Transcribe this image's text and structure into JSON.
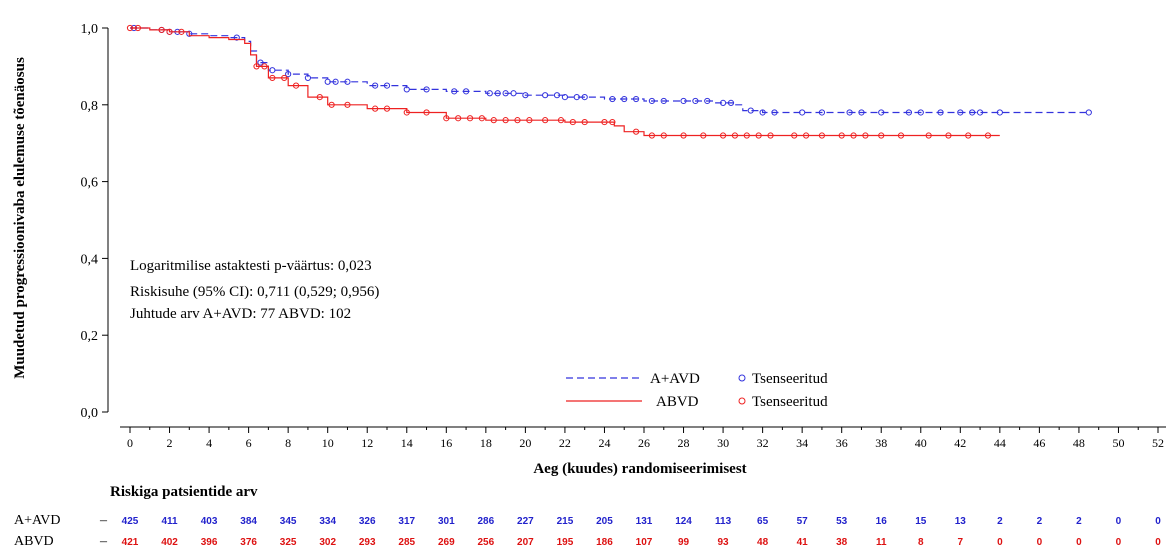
{
  "chart_data": {
    "type": "line",
    "title": "",
    "xlabel": "Aeg (kuudes) randomiseerimisest",
    "ylabel": "Muudetud progressioonivaba elulemuse tõenäosus",
    "xlim": [
      0,
      52
    ],
    "ylim": [
      0,
      1
    ],
    "x_ticks": [
      "0",
      "2",
      "4",
      "6",
      "8",
      "10",
      "12",
      "14",
      "16",
      "18",
      "20",
      "22",
      "24",
      "26",
      "28",
      "30",
      "32",
      "34",
      "36",
      "38",
      "40",
      "42",
      "44",
      "46",
      "48",
      "50",
      "52"
    ],
    "y_ticks": [
      "0,0",
      "0,2",
      "0,4",
      "0,6",
      "0,8",
      "1,0"
    ],
    "grid": false,
    "legend": "bottom-right",
    "series": [
      {
        "name": "A+AVD",
        "color": "#3333dd",
        "style": "dashed",
        "points": [
          [
            0,
            1.0
          ],
          [
            1,
            0.995
          ],
          [
            2,
            0.99
          ],
          [
            3,
            0.985
          ],
          [
            4,
            0.98
          ],
          [
            5,
            0.975
          ],
          [
            5.8,
            0.965
          ],
          [
            6.1,
            0.94
          ],
          [
            6.4,
            0.91
          ],
          [
            7,
            0.89
          ],
          [
            8,
            0.88
          ],
          [
            9,
            0.87
          ],
          [
            10,
            0.86
          ],
          [
            12,
            0.85
          ],
          [
            14,
            0.84
          ],
          [
            16,
            0.835
          ],
          [
            18,
            0.83
          ],
          [
            20,
            0.825
          ],
          [
            22,
            0.82
          ],
          [
            24,
            0.815
          ],
          [
            26,
            0.81
          ],
          [
            28,
            0.81
          ],
          [
            29.5,
            0.805
          ],
          [
            30.5,
            0.8
          ],
          [
            31,
            0.785
          ],
          [
            32,
            0.78
          ],
          [
            34,
            0.78
          ],
          [
            38,
            0.78
          ],
          [
            48.5,
            0.78
          ]
        ],
        "censored_x": [
          0.2,
          1.6,
          2,
          2.4,
          3,
          5.4,
          6.6,
          7.2,
          8,
          9,
          10,
          10.4,
          11,
          12.4,
          13,
          14,
          15,
          16.4,
          17,
          18.2,
          18.6,
          19,
          19.4,
          20,
          21,
          21.6,
          22,
          22.6,
          23,
          24.4,
          25,
          25.6,
          26.4,
          27,
          28,
          28.6,
          29.2,
          30,
          30.4,
          31.4,
          32,
          32.6,
          34,
          35,
          36.4,
          37,
          38,
          39.4,
          40,
          41,
          42,
          42.6,
          43,
          44,
          48.5
        ]
      },
      {
        "name": "ABVD",
        "color": "#ee2222",
        "style": "solid",
        "points": [
          [
            0,
            1.0
          ],
          [
            1,
            0.995
          ],
          [
            2,
            0.99
          ],
          [
            3,
            0.98
          ],
          [
            4,
            0.975
          ],
          [
            5,
            0.97
          ],
          [
            5.8,
            0.96
          ],
          [
            6.1,
            0.93
          ],
          [
            6.4,
            0.9
          ],
          [
            7,
            0.87
          ],
          [
            8,
            0.85
          ],
          [
            9,
            0.82
          ],
          [
            10,
            0.8
          ],
          [
            12,
            0.79
          ],
          [
            14,
            0.78
          ],
          [
            16,
            0.765
          ],
          [
            18,
            0.76
          ],
          [
            20,
            0.76
          ],
          [
            22,
            0.755
          ],
          [
            24,
            0.755
          ],
          [
            24.5,
            0.745
          ],
          [
            25,
            0.73
          ],
          [
            26,
            0.72
          ],
          [
            28,
            0.72
          ],
          [
            32,
            0.72
          ],
          [
            36,
            0.72
          ],
          [
            44,
            0.72
          ]
        ],
        "censored_x": [
          0,
          0.4,
          1.6,
          2,
          2.6,
          6.4,
          6.8,
          7.2,
          7.8,
          8.4,
          9.6,
          10.2,
          11,
          12.4,
          13,
          14,
          15,
          16,
          16.6,
          17.2,
          17.8,
          18.4,
          19,
          19.6,
          20.2,
          21,
          21.8,
          22.4,
          23,
          24,
          24.4,
          25.6,
          26.4,
          27,
          28,
          29,
          30,
          30.6,
          31.2,
          31.8,
          32.4,
          33.6,
          34.2,
          35,
          36,
          36.6,
          37.2,
          38,
          39,
          40.4,
          41.4,
          42.4,
          43.4
        ]
      }
    ],
    "censored_label": "Tsenseeritud",
    "annotations": [
      "Logaritmilise astaktesti p-väärtus: 0,023",
      "Riskisuhe (95% CI): 0,711 (0,529; 0,956)",
      "Juhtude arv A+AVD: 77 ABVD: 102"
    ],
    "risk_table": {
      "title": "Riskiga patsientide arv",
      "rows": [
        {
          "label": "A+AVD",
          "values": [
            "425",
            "411",
            "403",
            "384",
            "345",
            "334",
            "326",
            "317",
            "301",
            "286",
            "227",
            "215",
            "205",
            "131",
            "124",
            "113",
            "65",
            "57",
            "53",
            "16",
            "15",
            "13",
            "2",
            "2",
            "2",
            "0",
            "0"
          ]
        },
        {
          "label": "ABVD",
          "values": [
            "421",
            "402",
            "396",
            "376",
            "325",
            "302",
            "293",
            "285",
            "269",
            "256",
            "207",
            "195",
            "186",
            "107",
            "99",
            "93",
            "48",
            "41",
            "38",
            "11",
            "8",
            "7",
            "0",
            "0",
            "0",
            "0",
            "0"
          ]
        }
      ]
    }
  }
}
